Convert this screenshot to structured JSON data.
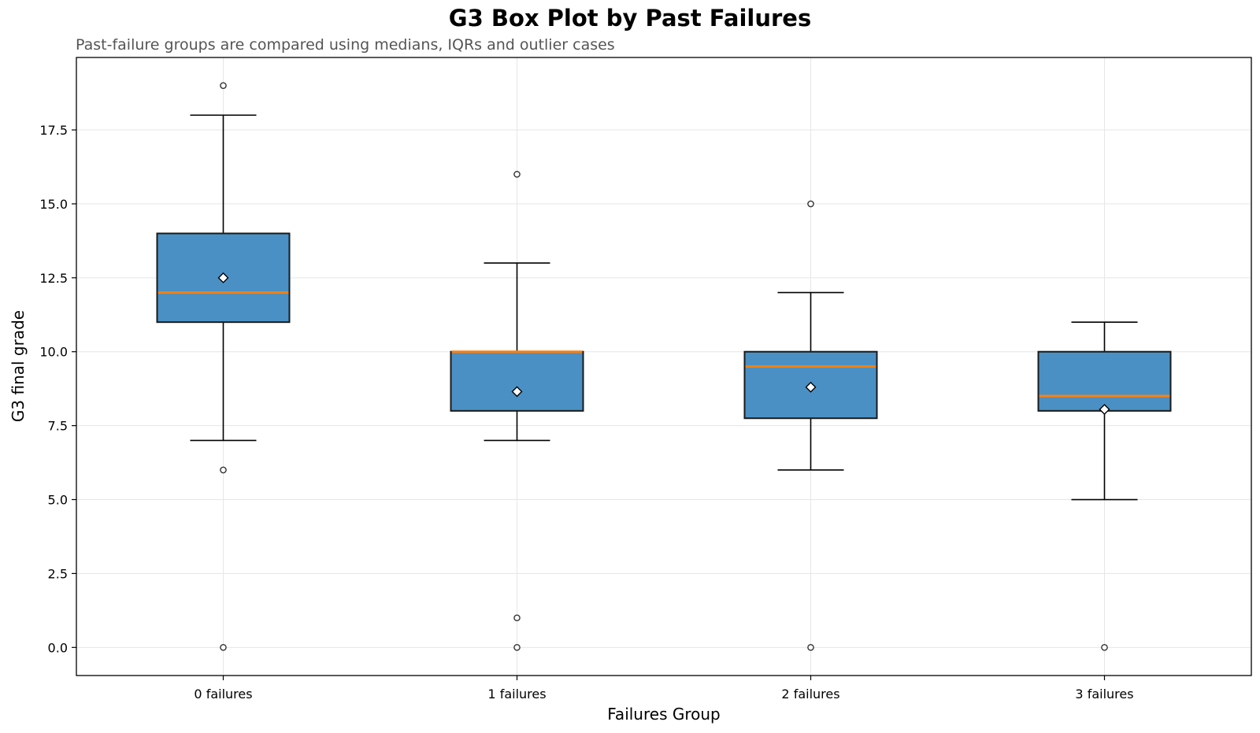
{
  "chart_data": {
    "type": "box",
    "title": "G3 Box Plot by Past Failures",
    "subtitle": "Past-failure groups are compared using medians, IQRs and outlier cases",
    "xlabel": "Failures Group",
    "ylabel": "G3 final grade",
    "ylim": [
      -0.95,
      19.95
    ],
    "yticks": [
      "0.0",
      "2.5",
      "5.0",
      "7.5",
      "10.0",
      "12.5",
      "15.0",
      "17.5"
    ],
    "grid": true,
    "colors": {
      "box": "#4a90c4",
      "median": "#ff7f0e",
      "edge": "#1a1a1a",
      "grid": "#e6e6e6"
    },
    "categories": [
      "0 failures",
      "1 failures",
      "2 failures",
      "3 failures"
    ],
    "boxes": [
      {
        "name": "0 failures",
        "whisker_low": 7,
        "q1": 11,
        "median": 12,
        "q3": 14,
        "whisker_high": 18,
        "mean": 12.5,
        "outliers": [
          19,
          6,
          0
        ]
      },
      {
        "name": "1 failures",
        "whisker_low": 7,
        "q1": 8,
        "median": 10,
        "q3": 10,
        "whisker_high": 13,
        "mean": 8.65,
        "outliers": [
          16,
          1,
          0
        ]
      },
      {
        "name": "2 failures",
        "whisker_low": 6,
        "q1": 7.75,
        "median": 9.5,
        "q3": 10,
        "whisker_high": 12,
        "mean": 8.8,
        "outliers": [
          15,
          0
        ]
      },
      {
        "name": "3 failures",
        "whisker_low": 5,
        "q1": 8,
        "median": 8.5,
        "q3": 10,
        "whisker_high": 11,
        "mean": 8.05,
        "outliers": [
          0
        ]
      }
    ]
  }
}
